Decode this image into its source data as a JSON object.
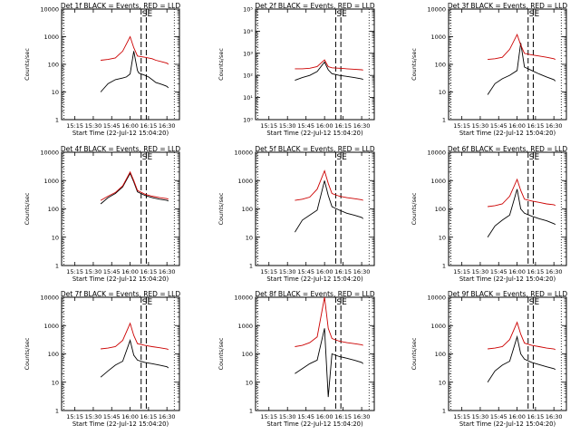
{
  "chart_data": [
    {
      "type": "line",
      "title": "Det 1f BLACK = Events, RED = LLD",
      "ylabel": "Counts/sec",
      "xlabel": "Start Time (22-Jul-12 15:04:20)",
      "yscale": "log",
      "ylim": [
        1,
        10000
      ],
      "ytick_labels": [
        "10000",
        "1000",
        "100",
        "10",
        "1"
      ],
      "xtick_labels": [
        "15:15",
        "15:30",
        "15:45",
        "16:00",
        "16:15",
        "16:30"
      ],
      "annotation": "S",
      "annotation2": "E",
      "series": [
        {
          "color": "#000000",
          "x": [
            15.6,
            15.7,
            15.8,
            15.9,
            15.95,
            16.0,
            16.05,
            16.1,
            16.12,
            16.15,
            16.2,
            16.25,
            16.3,
            16.35,
            16.4,
            16.45,
            16.5,
            16.52
          ],
          "y": [
            10,
            20,
            28,
            32,
            35,
            45,
            300,
            60,
            48,
            45,
            40,
            35,
            28,
            22,
            20,
            18,
            16,
            14
          ]
        },
        {
          "color": "#cc0000",
          "x": [
            15.6,
            15.7,
            15.8,
            15.9,
            16.0,
            16.05,
            16.1,
            16.2,
            16.3,
            16.35,
            16.45,
            16.5,
            16.52
          ],
          "y": [
            140,
            150,
            170,
            300,
            1000,
            400,
            200,
            180,
            160,
            140,
            120,
            110,
            100
          ]
        }
      ]
    },
    {
      "type": "line",
      "title": "Det 2f BLACK = Events, RED = LLD",
      "ylabel": "Counts/sec",
      "xlabel": "Start Time (22-Jul-12 15:04:20)",
      "yscale": "log",
      "ylim": [
        1,
        100000
      ],
      "ytick_labels": [
        "10⁵",
        "10⁴",
        "10³",
        "10²",
        "10¹",
        "10⁰"
      ],
      "xtick_labels": [
        "15:15",
        "15:30",
        "15:45",
        "16:00",
        "16:15",
        "16:30"
      ],
      "annotation": "S",
      "annotation2": "E",
      "series": [
        {
          "color": "#000000",
          "x": [
            15.6,
            15.7,
            15.8,
            15.9,
            16.0,
            16.05,
            16.1,
            16.2,
            16.3,
            16.4,
            16.5,
            16.52
          ],
          "y": [
            60,
            80,
            100,
            150,
            400,
            180,
            120,
            100,
            90,
            80,
            70,
            65
          ]
        },
        {
          "color": "#cc0000",
          "x": [
            15.6,
            15.7,
            15.8,
            15.9,
            16.0,
            16.05,
            16.1,
            16.2,
            16.3,
            16.4,
            16.5,
            16.52
          ],
          "y": [
            200,
            200,
            210,
            250,
            500,
            250,
            220,
            210,
            200,
            190,
            180,
            175
          ]
        }
      ]
    },
    {
      "type": "line",
      "title": "Det 3f BLACK = Events, RED = LLD",
      "ylabel": "Counts/sec",
      "xlabel": "Start Time (22-Jul-12 15:04:20)",
      "yscale": "log",
      "ylim": [
        1,
        10000
      ],
      "ytick_labels": [
        "10000",
        "1000",
        "100",
        "10",
        "1"
      ],
      "xtick_labels": [
        "15:15",
        "15:30",
        "15:45",
        "16:00",
        "16:15",
        "16:30"
      ],
      "annotation": "S",
      "annotation2": "E",
      "series": [
        {
          "color": "#000000",
          "x": [
            15.6,
            15.7,
            15.8,
            15.9,
            16.0,
            16.05,
            16.1,
            16.2,
            16.3,
            16.4,
            16.5,
            16.52
          ],
          "y": [
            8,
            20,
            30,
            40,
            60,
            600,
            80,
            60,
            45,
            35,
            28,
            25
          ]
        },
        {
          "color": "#cc0000",
          "x": [
            15.6,
            15.7,
            15.8,
            15.9,
            16.0,
            16.05,
            16.1,
            16.2,
            16.3,
            16.4,
            16.5,
            16.52
          ],
          "y": [
            150,
            160,
            180,
            350,
            1200,
            500,
            250,
            220,
            200,
            180,
            160,
            150
          ]
        }
      ]
    },
    {
      "type": "line",
      "title": "Det 4f BLACK = Events, RED = LLD",
      "ylabel": "Counts/sec",
      "xlabel": "Start Time (22-Jul-12 15:04:20)",
      "yscale": "log",
      "ylim": [
        1,
        10000
      ],
      "ytick_labels": [
        "10000",
        "1000",
        "100",
        "10",
        "1"
      ],
      "xtick_labels": [
        "15:15",
        "15:30",
        "15:45",
        "16:00",
        "16:15",
        "16:30"
      ],
      "annotation": "S",
      "annotation2": "E",
      "series": [
        {
          "color": "#000000",
          "x": [
            15.6,
            15.7,
            15.8,
            15.9,
            16.0,
            16.05,
            16.1,
            16.2,
            16.3,
            16.4,
            16.5,
            16.52
          ],
          "y": [
            150,
            250,
            350,
            600,
            1800,
            900,
            400,
            300,
            250,
            220,
            200,
            190
          ]
        },
        {
          "color": "#cc0000",
          "x": [
            15.6,
            15.7,
            15.8,
            15.9,
            16.0,
            16.05,
            16.1,
            16.2,
            16.3,
            16.4,
            16.5,
            16.52
          ],
          "y": [
            200,
            280,
            380,
            650,
            2000,
            1000,
            450,
            330,
            280,
            250,
            230,
            220
          ]
        }
      ]
    },
    {
      "type": "line",
      "title": "Det 5f BLACK = Events, RED = LLD",
      "ylabel": "Counts/sec",
      "xlabel": "Start Time (22-Jul-12 15:04:20)",
      "yscale": "log",
      "ylim": [
        1,
        10000
      ],
      "ytick_labels": [
        "10000",
        "1000",
        "100",
        "10",
        "1"
      ],
      "xtick_labels": [
        "15:15",
        "15:30",
        "15:45",
        "16:00",
        "16:15",
        "16:30"
      ],
      "annotation": "S",
      "annotation2": "E",
      "series": [
        {
          "color": "#000000",
          "x": [
            15.6,
            15.7,
            15.8,
            15.9,
            16.0,
            16.05,
            16.1,
            16.2,
            16.3,
            16.4,
            16.5,
            16.52
          ],
          "y": [
            15,
            40,
            60,
            90,
            1000,
            300,
            120,
            90,
            70,
            60,
            50,
            45
          ]
        },
        {
          "color": "#cc0000",
          "x": [
            15.6,
            15.7,
            15.8,
            15.9,
            16.0,
            16.05,
            16.1,
            16.2,
            16.3,
            16.4,
            16.5,
            16.52
          ],
          "y": [
            200,
            220,
            260,
            500,
            2200,
            800,
            350,
            280,
            250,
            230,
            210,
            200
          ]
        }
      ]
    },
    {
      "type": "line",
      "title": "Det 6f BLACK = Events, RED = LLD",
      "ylabel": "Counts/sec",
      "xlabel": "Start Time (22-Jul-12 15:04:20)",
      "yscale": "log",
      "ylim": [
        1,
        10000
      ],
      "ytick_labels": [
        "10000",
        "1000",
        "100",
        "10",
        "1"
      ],
      "xtick_labels": [
        "15:15",
        "15:30",
        "15:45",
        "16:00",
        "16:15",
        "16:30"
      ],
      "annotation": "S",
      "annotation2": "E",
      "series": [
        {
          "color": "#000000",
          "x": [
            15.6,
            15.7,
            15.8,
            15.9,
            16.0,
            16.05,
            16.1,
            16.2,
            16.3,
            16.4,
            16.5,
            16.52
          ],
          "y": [
            10,
            25,
            40,
            60,
            500,
            100,
            70,
            55,
            45,
            38,
            30,
            28
          ]
        },
        {
          "color": "#cc0000",
          "x": [
            15.6,
            15.7,
            15.8,
            15.9,
            16.0,
            16.05,
            16.1,
            16.2,
            16.3,
            16.4,
            16.5,
            16.52
          ],
          "y": [
            120,
            130,
            150,
            280,
            1100,
            450,
            220,
            190,
            170,
            150,
            140,
            130
          ]
        }
      ]
    },
    {
      "type": "line",
      "title": "Det 7f BLACK = Events, RED = LLD",
      "ylabel": "Counts/sec",
      "xlabel": "Start Time (22-Jul-12 15:04:20)",
      "yscale": "log",
      "ylim": [
        1,
        10000
      ],
      "ytick_labels": [
        "10000",
        "1000",
        "100",
        "10",
        "1"
      ],
      "xtick_labels": [
        "15:15",
        "15:30",
        "15:45",
        "16:00",
        "16:15",
        "16:30"
      ],
      "annotation": "S",
      "annotation2": "E",
      "series": [
        {
          "color": "#000000",
          "x": [
            15.6,
            15.7,
            15.8,
            15.9,
            16.0,
            16.05,
            16.1,
            16.2,
            16.3,
            16.4,
            16.5,
            16.52
          ],
          "y": [
            15,
            25,
            40,
            55,
            300,
            90,
            60,
            50,
            45,
            40,
            35,
            32
          ]
        },
        {
          "color": "#cc0000",
          "x": [
            15.6,
            15.7,
            15.8,
            15.9,
            16.0,
            16.05,
            16.1,
            16.2,
            16.3,
            16.4,
            16.5,
            16.52
          ],
          "y": [
            150,
            160,
            180,
            300,
            1200,
            450,
            230,
            200,
            180,
            165,
            150,
            140
          ]
        }
      ]
    },
    {
      "type": "line",
      "title": "Det 8f BLACK = Events, RED = LLD",
      "ylabel": "Counts/sec",
      "xlabel": "Start Time (22-Jul-12 15:04:20)",
      "yscale": "log",
      "ylim": [
        1,
        10000
      ],
      "ytick_labels": [
        "10000",
        "1000",
        "100",
        "10",
        "1"
      ],
      "xtick_labels": [
        "15:15",
        "15:30",
        "15:45",
        "16:00",
        "16:15",
        "16:30"
      ],
      "annotation": "S",
      "annotation2": "E",
      "series": [
        {
          "color": "#000000",
          "x": [
            15.6,
            15.7,
            15.8,
            15.9,
            16.0,
            16.05,
            16.1,
            16.2,
            16.3,
            16.4,
            16.5,
            16.52
          ],
          "y": [
            20,
            30,
            45,
            60,
            800,
            3,
            100,
            80,
            70,
            60,
            50,
            45
          ]
        },
        {
          "color": "#cc0000",
          "x": [
            15.6,
            15.7,
            15.8,
            15.9,
            16.0,
            16.05,
            16.1,
            16.2,
            16.3,
            16.4,
            16.5,
            16.52
          ],
          "y": [
            180,
            200,
            250,
            400,
            10000,
            800,
            350,
            280,
            250,
            230,
            210,
            200
          ]
        }
      ]
    },
    {
      "type": "line",
      "title": "Det 9f BLACK = Events, RED = LLD",
      "ylabel": "Counts/sec",
      "xlabel": "Start Time (22-Jul-12 15:04:20)",
      "yscale": "log",
      "ylim": [
        1,
        10000
      ],
      "ytick_labels": [
        "10000",
        "1000",
        "100",
        "10",
        "1"
      ],
      "xtick_labels": [
        "15:15",
        "15:30",
        "15:45",
        "16:00",
        "16:15",
        "16:30"
      ],
      "annotation": "S",
      "annotation2": "E",
      "series": [
        {
          "color": "#000000",
          "x": [
            15.6,
            15.7,
            15.8,
            15.9,
            16.0,
            16.05,
            16.1,
            16.2,
            16.3,
            16.4,
            16.5,
            16.52
          ],
          "y": [
            10,
            25,
            40,
            55,
            400,
            100,
            65,
            50,
            42,
            35,
            30,
            28
          ]
        },
        {
          "color": "#cc0000",
          "x": [
            15.6,
            15.7,
            15.8,
            15.9,
            16.0,
            16.05,
            16.1,
            16.2,
            16.3,
            16.4,
            16.5,
            16.52
          ],
          "y": [
            150,
            160,
            180,
            320,
            1300,
            500,
            240,
            200,
            180,
            160,
            150,
            140
          ]
        }
      ]
    }
  ]
}
